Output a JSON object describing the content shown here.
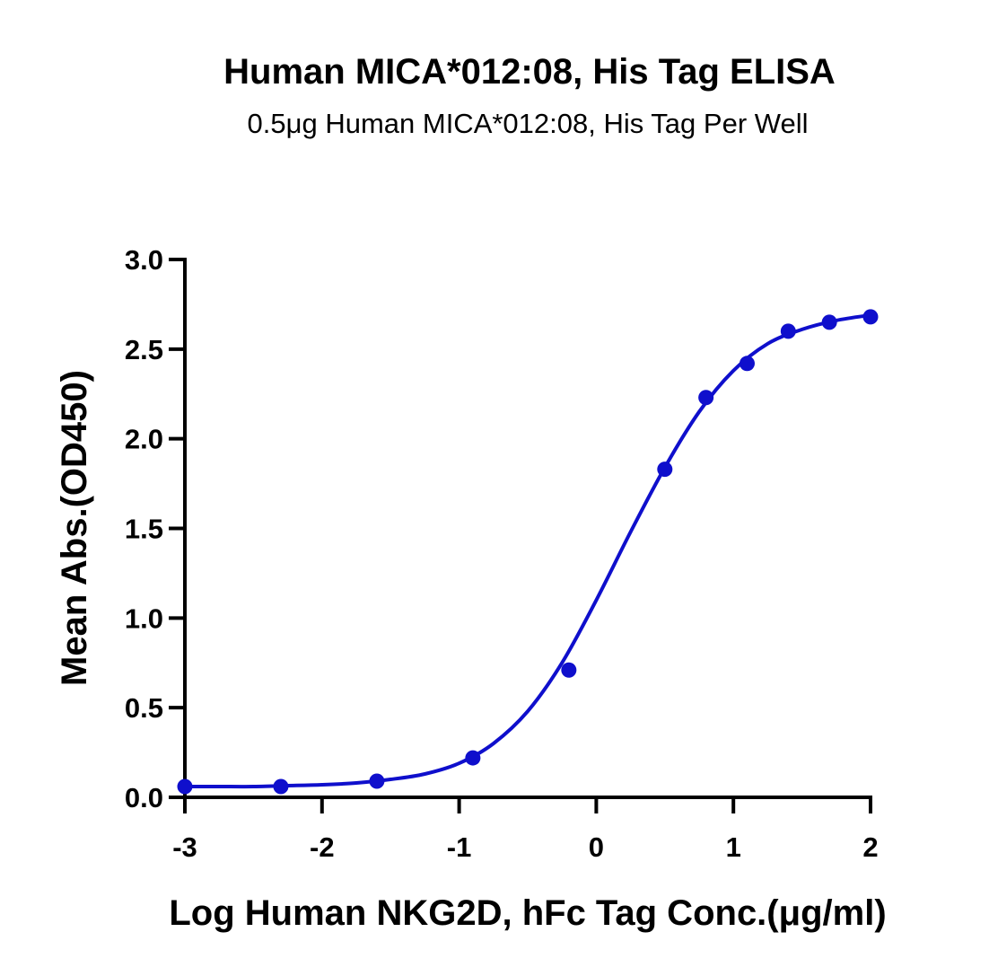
{
  "chart_data": {
    "type": "scatter",
    "title": "Human MICA*012:08, His Tag ELISA",
    "subtitle": "0.5μg Human MICA*012:08, His Tag Per Well",
    "xlabel": "Log Human NKG2D, hFc Tag Conc.(μg/ml)",
    "ylabel": "Mean Abs.(OD450)",
    "xlim": [
      -3,
      2
    ],
    "ylim": [
      0,
      3
    ],
    "x_ticks": [
      -3,
      -2,
      -1,
      0,
      1,
      2
    ],
    "x_tick_labels": [
      "-3",
      "-2",
      "-1",
      "0",
      "1",
      "2"
    ],
    "y_ticks": [
      0,
      0.5,
      1,
      1.5,
      2,
      2.5,
      3
    ],
    "y_tick_labels": [
      "0.0",
      "0.5",
      "1.0",
      "1.5",
      "2.0",
      "2.5",
      "3.0"
    ],
    "grid": false,
    "legend": false,
    "series": [
      {
        "x": [
          -3.0,
          -2.3,
          -1.6,
          -0.9,
          -0.2,
          0.5,
          0.8,
          1.1,
          1.4,
          1.7,
          2.0
        ],
        "y": [
          0.06,
          0.06,
          0.09,
          0.22,
          0.71,
          1.83,
          2.23,
          2.42,
          2.6,
          2.65,
          2.68
        ],
        "color": "#0f0fcc",
        "marker": "circle",
        "fit": "four-parameter logistic",
        "fit_curve": {
          "x": [
            -3.0,
            -2.75,
            -2.5,
            -2.25,
            -2.0,
            -1.75,
            -1.5,
            -1.25,
            -1.0,
            -0.75,
            -0.5,
            -0.25,
            0.0,
            0.25,
            0.5,
            0.75,
            1.0,
            1.25,
            1.5,
            1.75,
            2.0
          ],
          "y": [
            0.06,
            0.06,
            0.06,
            0.065,
            0.07,
            0.08,
            0.1,
            0.13,
            0.19,
            0.3,
            0.48,
            0.75,
            1.1,
            1.48,
            1.84,
            2.15,
            2.38,
            2.53,
            2.61,
            2.66,
            2.69
          ]
        }
      }
    ]
  }
}
